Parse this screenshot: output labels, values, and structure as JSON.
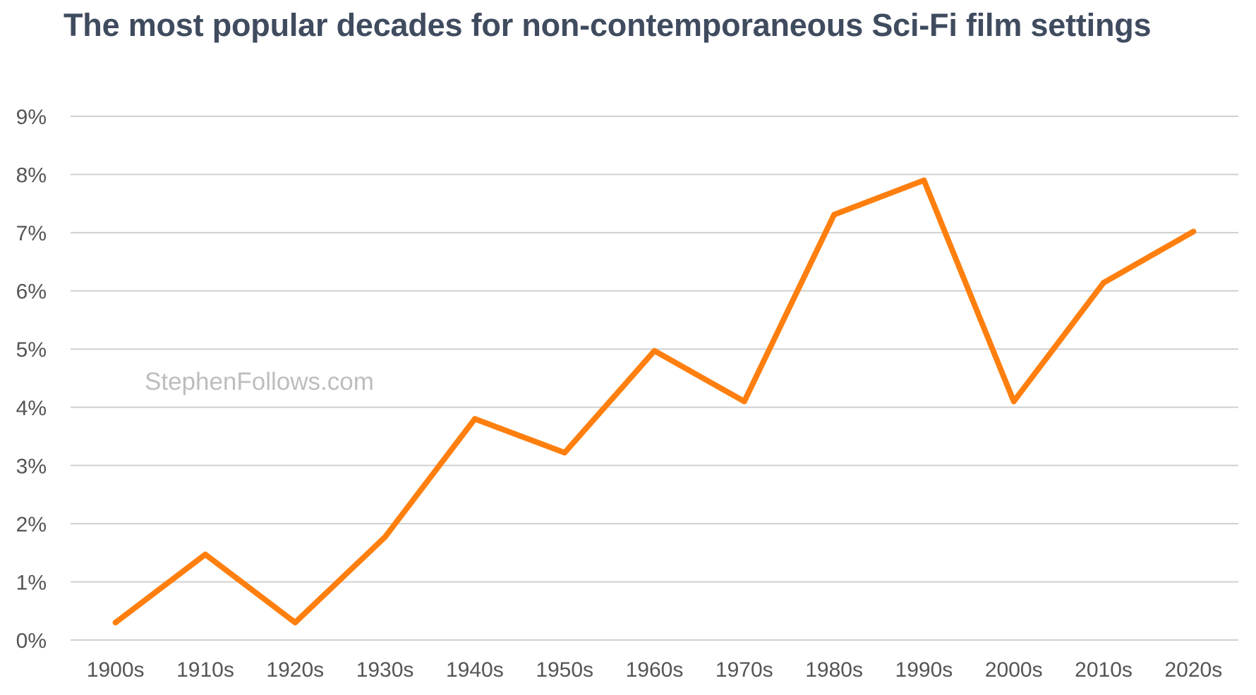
{
  "chart_data": {
    "type": "line",
    "title": "The most popular decades for non-contemporaneous Sci-Fi film settings",
    "xlabel": "",
    "ylabel": "",
    "categories": [
      "1900s",
      "1910s",
      "1920s",
      "1930s",
      "1940s",
      "1950s",
      "1960s",
      "1970s",
      "1980s",
      "1990s",
      "2000s",
      "2010s",
      "2020s"
    ],
    "series": [
      {
        "values": [
          0.3,
          1.47,
          0.3,
          1.77,
          3.8,
          3.22,
          4.97,
          4.1,
          7.31,
          7.9,
          4.1,
          6.14,
          7.02
        ],
        "color": "#ff7f0e"
      }
    ],
    "ylim": [
      0,
      9
    ],
    "yticks": [
      0,
      1,
      2,
      3,
      4,
      5,
      6,
      7,
      8,
      9
    ],
    "ytick_labels": [
      "0%",
      "1%",
      "2%",
      "3%",
      "4%",
      "5%",
      "6%",
      "7%",
      "8%",
      "9%"
    ],
    "grid": true,
    "legend": "none",
    "watermark": "StephenFollows.com",
    "colors": {
      "title": "#3f4b5e",
      "line": "#ff7f0e",
      "grid": "#d0d0d0",
      "tick_text": "#555555",
      "watermark": "#bdbdbd"
    }
  }
}
